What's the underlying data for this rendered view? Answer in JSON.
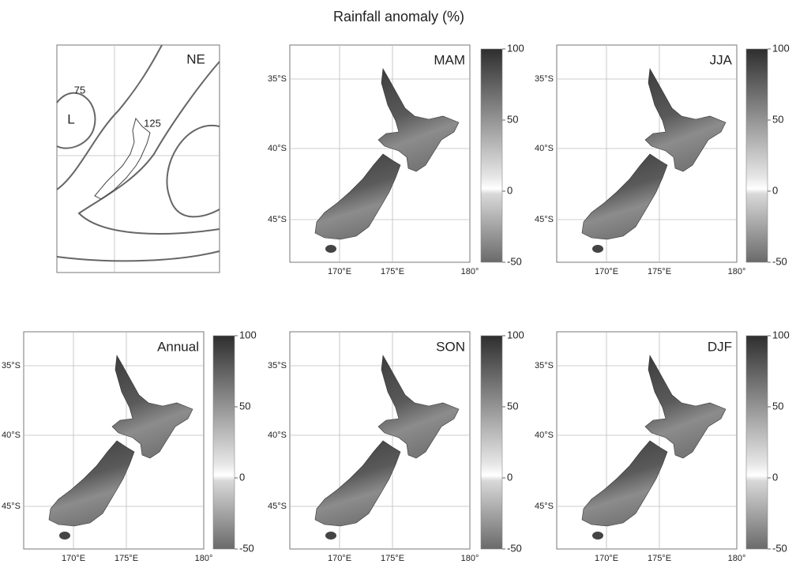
{
  "title": "Rainfall anomaly (%)",
  "pressure_map": {
    "label": "NE",
    "low": "L",
    "contour_labels": [
      "75",
      "125"
    ]
  },
  "panels": [
    {
      "label": "MAM",
      "lat_labels": [
        "35°S",
        "40°S",
        "45°S"
      ],
      "lon_labels": [
        "170°E",
        "175°E",
        "180°"
      ],
      "colorbar_ticks": [
        100,
        50,
        0,
        -50
      ]
    },
    {
      "label": "JJA",
      "lat_labels": [
        "35°S",
        "40°S",
        "45°S"
      ],
      "lon_labels": [
        "170°E",
        "175°E",
        "180°"
      ],
      "colorbar_ticks": [
        100,
        50,
        0,
        -50
      ]
    },
    {
      "label": "Annual",
      "lat_labels": [
        "35°S",
        "40°S",
        "45°S"
      ],
      "lon_labels": [
        "170°E",
        "175°E",
        "180°"
      ],
      "colorbar_ticks": [
        100,
        50,
        0,
        -50
      ]
    },
    {
      "label": "SON",
      "lat_labels": [
        "35°S",
        "40°S",
        "45°S"
      ],
      "lon_labels": [
        "170°E",
        "175°E",
        "180°"
      ],
      "colorbar_ticks": [
        100,
        50,
        0,
        -50
      ]
    },
    {
      "label": "DJF",
      "lat_labels": [
        "35°S",
        "40°S",
        "45°S"
      ],
      "lon_labels": [
        "170°E",
        "175°E",
        "180°"
      ],
      "colorbar_ticks": [
        100,
        50,
        0,
        -50
      ]
    }
  ]
}
